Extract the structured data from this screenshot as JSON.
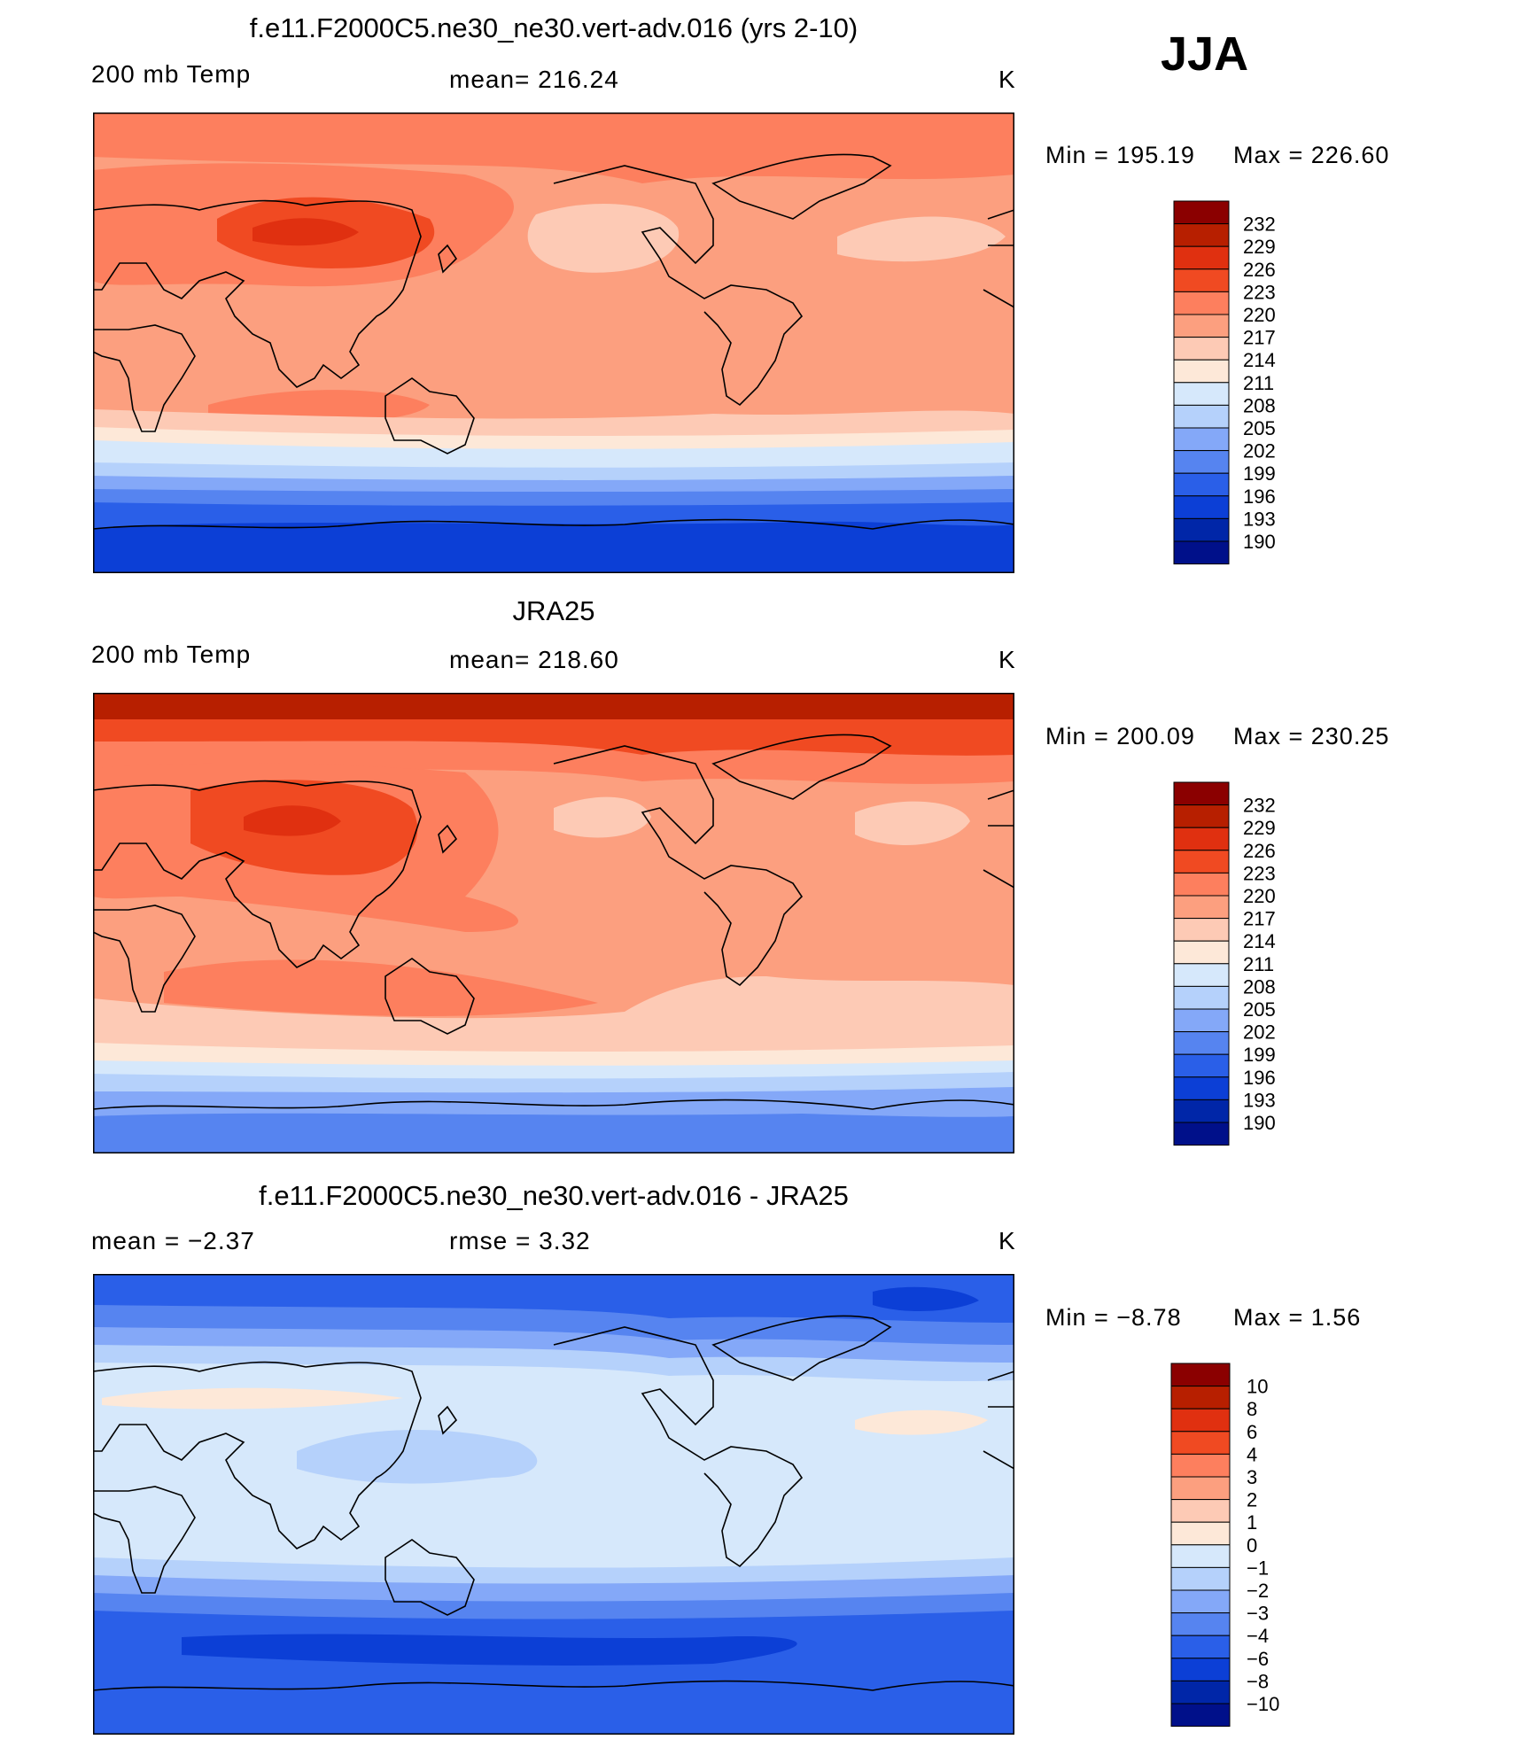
{
  "season": "JJA",
  "units": "K",
  "panels": [
    {
      "title": "f.e11.F2000C5.ne30_ne30.vert-adv.016 (yrs 2-10)",
      "left_label": "200 mb Temp",
      "stat_text": "mean=  216.24",
      "units": "K",
      "min_text": "Min  =  195.19",
      "max_text": "Max  =  226.60",
      "colorbar_ticks": [
        "232",
        "229",
        "226",
        "223",
        "220",
        "217",
        "214",
        "211",
        "208",
        "205",
        "202",
        "199",
        "196",
        "193",
        "190"
      ]
    },
    {
      "title": "JRA25",
      "left_label": "200 mb Temp",
      "stat_text": "mean=  218.60",
      "units": "K",
      "min_text": "Min  =  200.09",
      "max_text": "Max  =  230.25",
      "colorbar_ticks": [
        "232",
        "229",
        "226",
        "223",
        "220",
        "217",
        "214",
        "211",
        "208",
        "205",
        "202",
        "199",
        "196",
        "193",
        "190"
      ]
    },
    {
      "title": "f.e11.F2000C5.ne30_ne30.vert-adv.016 - JRA25",
      "left_label": "mean  =    −2.37",
      "stat_text": "rmse  =     3.32",
      "units": "K",
      "min_text": "Min  =    −8.78",
      "max_text": "Max  =     1.56",
      "colorbar_ticks": [
        "10",
        "8",
        "6",
        "4",
        "3",
        "2",
        "1",
        "0",
        "−1",
        "−2",
        "−3",
        "−4",
        "−6",
        "−8",
        "−10"
      ]
    }
  ],
  "chart_data": [
    {
      "type": "heatmap",
      "title": "f.e11.F2000C5.ne30_ne30.vert-adv.016 (yrs 2-10)",
      "variable": "200 mb Temp",
      "units": "K",
      "mean": 216.24,
      "min": 195.19,
      "max": 226.6,
      "contour_levels": [
        190,
        193,
        196,
        199,
        202,
        205,
        208,
        211,
        214,
        217,
        220,
        223,
        226,
        229,
        232
      ],
      "zonal_band_K": [
        {
          "lat": 90,
          "value": 222
        },
        {
          "lat": 60,
          "value": 220
        },
        {
          "lat": 40,
          "value": 223
        },
        {
          "lat": 20,
          "value": 219
        },
        {
          "lat": 0,
          "value": 218
        },
        {
          "lat": -20,
          "value": 219
        },
        {
          "lat": -35,
          "value": 214
        },
        {
          "lat": -45,
          "value": 207
        },
        {
          "lat": -60,
          "value": 199
        },
        {
          "lat": -75,
          "value": 195
        },
        {
          "lat": -90,
          "value": 195
        }
      ]
    },
    {
      "type": "heatmap",
      "title": "JRA25",
      "variable": "200 mb Temp",
      "units": "K",
      "mean": 218.6,
      "min": 200.09,
      "max": 230.25,
      "contour_levels": [
        190,
        193,
        196,
        199,
        202,
        205,
        208,
        211,
        214,
        217,
        220,
        223,
        226,
        229,
        232
      ],
      "zonal_band_K": [
        {
          "lat": 90,
          "value": 229
        },
        {
          "lat": 70,
          "value": 226
        },
        {
          "lat": 50,
          "value": 224
        },
        {
          "lat": 30,
          "value": 222
        },
        {
          "lat": 0,
          "value": 219
        },
        {
          "lat": -25,
          "value": 221
        },
        {
          "lat": -40,
          "value": 216
        },
        {
          "lat": -50,
          "value": 211
        },
        {
          "lat": -60,
          "value": 207
        },
        {
          "lat": -75,
          "value": 203
        },
        {
          "lat": -90,
          "value": 201
        }
      ]
    },
    {
      "type": "heatmap",
      "title": "f.e11.F2000C5.ne30_ne30.vert-adv.016 - JRA25",
      "units": "K",
      "mean": -2.37,
      "rmse": 3.32,
      "min": -8.78,
      "max": 1.56,
      "contour_levels": [
        -10,
        -8,
        -6,
        -4,
        -3,
        -2,
        -1,
        0,
        1,
        2,
        3,
        4,
        6,
        8,
        10
      ],
      "zonal_band_K": [
        {
          "lat": 90,
          "value": -6
        },
        {
          "lat": 70,
          "value": -5
        },
        {
          "lat": 55,
          "value": -3
        },
        {
          "lat": 40,
          "value": -1
        },
        {
          "lat": 20,
          "value": -1
        },
        {
          "lat": 0,
          "value": -1
        },
        {
          "lat": -20,
          "value": -1
        },
        {
          "lat": -35,
          "value": -2
        },
        {
          "lat": -45,
          "value": -4
        },
        {
          "lat": -60,
          "value": -5
        },
        {
          "lat": -75,
          "value": -4
        },
        {
          "lat": -90,
          "value": -4
        }
      ]
    }
  ]
}
